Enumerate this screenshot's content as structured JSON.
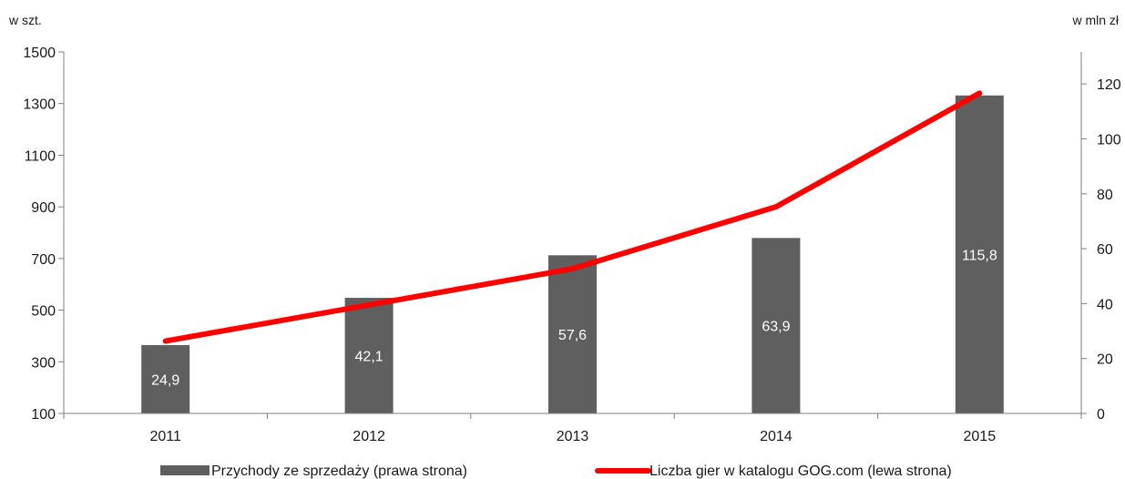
{
  "chart_data": {
    "type": "bar",
    "title": "",
    "left_unit": "w szt.",
    "right_unit": "w mln zł",
    "categories": [
      "2011",
      "2012",
      "2013",
      "2014",
      "2015"
    ],
    "y_left": {
      "min": 100,
      "max": 1500,
      "ticks": [
        "100",
        "300",
        "500",
        "700",
        "900",
        "1100",
        "1300",
        "1500"
      ]
    },
    "y_right": {
      "min": 0,
      "max": 130,
      "ticks": [
        "0",
        "20",
        "40",
        "60",
        "80",
        "100",
        "120"
      ]
    },
    "series": [
      {
        "name": "Przychody ze sprzedaży (prawa strona)",
        "kind": "bar",
        "axis": "right",
        "color": "#5f5f5f",
        "values": [
          24.9,
          42.1,
          57.6,
          63.9,
          115.8
        ],
        "labels": [
          "24,9",
          "42,1",
          "57,6",
          "63,9",
          "115,8"
        ]
      },
      {
        "name": "Liczba gier w katalogu GOG.com (lewa strona)",
        "kind": "line",
        "axis": "left",
        "color": "#ff0000",
        "values": [
          380,
          520,
          660,
          900,
          1340
        ]
      }
    ],
    "grid": false,
    "legend_position": "bottom"
  }
}
